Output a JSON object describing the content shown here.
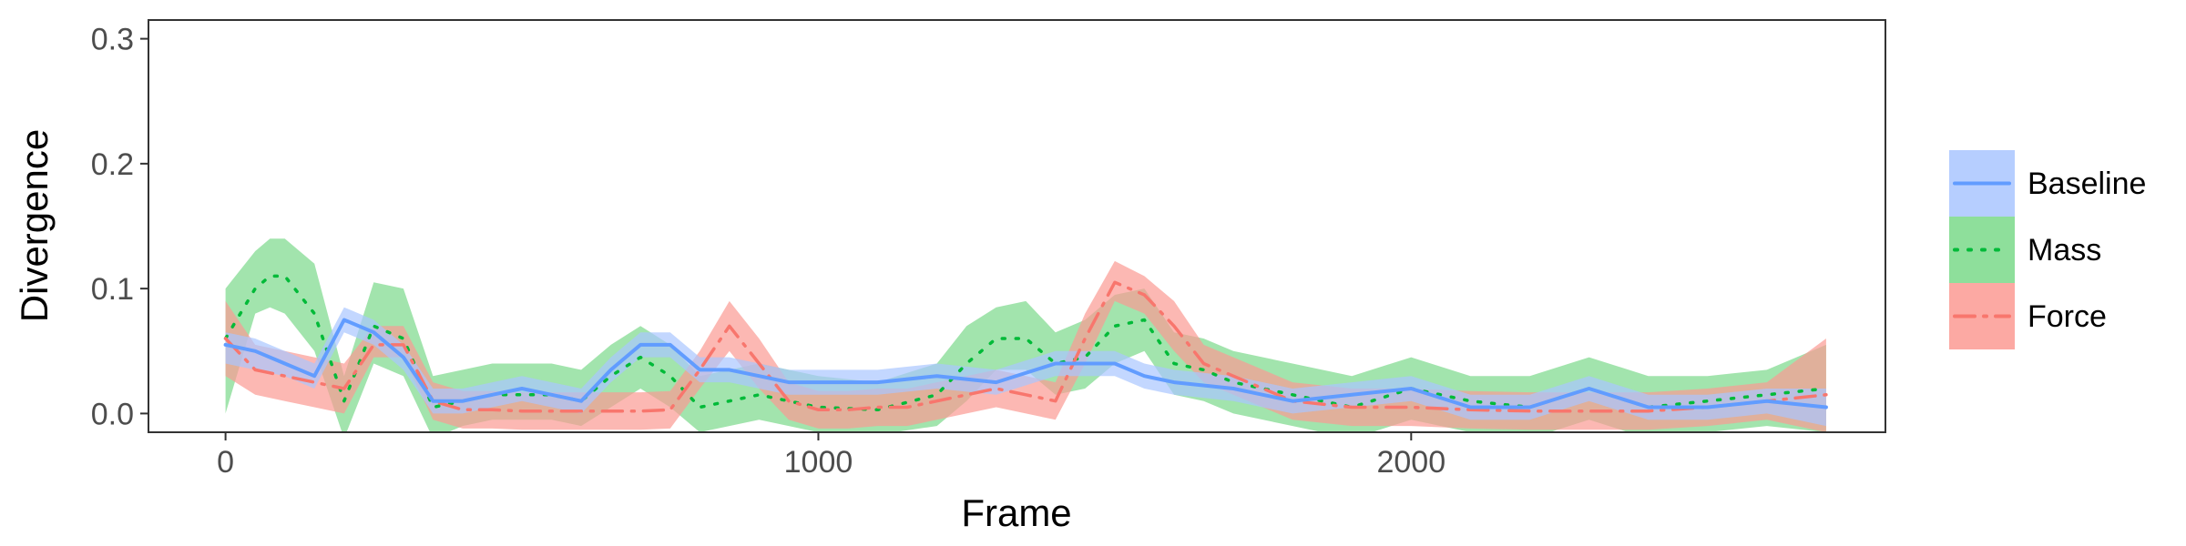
{
  "chart_data": {
    "type": "line",
    "xlabel": "Frame",
    "ylabel": "Divergence",
    "xlim": [
      -130,
      2800
    ],
    "ylim": [
      -0.015,
      0.315
    ],
    "x_ticks": [
      0,
      1000,
      2000
    ],
    "x_tick_labels": [
      "0",
      "1000",
      "2000"
    ],
    "y_ticks": [
      0.0,
      0.1,
      0.2,
      0.3
    ],
    "y_tick_labels": [
      "0.0",
      "0.1",
      "0.2",
      "0.3"
    ],
    "grid": false,
    "legend_position": "right",
    "series": [
      {
        "name": "Mass",
        "color": "#00ba38",
        "band_color": "#7ad98a",
        "line_style": "dotted",
        "x": [
          0,
          50,
          75,
          100,
          150,
          200,
          250,
          300,
          350,
          400,
          450,
          500,
          550,
          600,
          650,
          700,
          750,
          800,
          850,
          900,
          950,
          1000,
          1100,
          1200,
          1250,
          1300,
          1350,
          1400,
          1450,
          1500,
          1550,
          1600,
          1650,
          1700,
          1800,
          1900,
          2000,
          2100,
          2200,
          2300,
          2400,
          2500,
          2600,
          2700
        ],
        "y": [
          0.06,
          0.1,
          0.11,
          0.11,
          0.08,
          0.01,
          0.07,
          0.06,
          0.005,
          0.01,
          0.015,
          0.015,
          0.015,
          0.01,
          0.03,
          0.045,
          0.03,
          0.005,
          0.01,
          0.015,
          0.01,
          0.005,
          0.003,
          0.015,
          0.04,
          0.06,
          0.06,
          0.04,
          0.045,
          0.07,
          0.075,
          0.04,
          0.035,
          0.025,
          0.015,
          0.005,
          0.02,
          0.01,
          0.005,
          0.02,
          0.005,
          0.01,
          0.015,
          0.02
        ],
        "lower": [
          0.0,
          0.08,
          0.085,
          0.08,
          0.05,
          -0.02,
          0.04,
          0.03,
          -0.02,
          -0.01,
          -0.005,
          -0.005,
          -0.005,
          -0.01,
          0.005,
          0.02,
          0.005,
          -0.015,
          -0.01,
          -0.005,
          -0.01,
          -0.015,
          -0.017,
          -0.01,
          0.01,
          0.035,
          0.035,
          0.015,
          0.02,
          0.04,
          0.05,
          0.015,
          0.01,
          0.0,
          -0.01,
          -0.02,
          -0.005,
          -0.015,
          -0.02,
          -0.005,
          -0.02,
          -0.015,
          -0.01,
          -0.015
        ],
        "upper": [
          0.1,
          0.13,
          0.14,
          0.14,
          0.12,
          0.03,
          0.105,
          0.1,
          0.03,
          0.035,
          0.04,
          0.04,
          0.04,
          0.035,
          0.055,
          0.07,
          0.055,
          0.03,
          0.035,
          0.04,
          0.035,
          0.03,
          0.025,
          0.04,
          0.07,
          0.085,
          0.09,
          0.065,
          0.075,
          0.095,
          0.1,
          0.065,
          0.06,
          0.05,
          0.04,
          0.03,
          0.045,
          0.03,
          0.03,
          0.045,
          0.03,
          0.03,
          0.035,
          0.055
        ]
      },
      {
        "name": "Force",
        "color": "#f8766d",
        "band_color": "#fb9a93",
        "line_style": "dotdash",
        "x": [
          0,
          50,
          100,
          150,
          200,
          250,
          300,
          350,
          400,
          450,
          500,
          550,
          600,
          650,
          700,
          750,
          800,
          850,
          900,
          950,
          1000,
          1050,
          1100,
          1150,
          1200,
          1250,
          1300,
          1350,
          1400,
          1450,
          1500,
          1550,
          1600,
          1650,
          1700,
          1800,
          1900,
          2000,
          2100,
          2200,
          2300,
          2400,
          2500,
          2600,
          2700
        ],
        "y": [
          0.06,
          0.035,
          0.03,
          0.025,
          0.02,
          0.055,
          0.055,
          0.01,
          0.003,
          0.003,
          0.002,
          0.002,
          0.002,
          0.002,
          0.002,
          0.003,
          0.035,
          0.07,
          0.04,
          0.01,
          0.003,
          0.003,
          0.005,
          0.005,
          0.01,
          0.015,
          0.02,
          0.015,
          0.01,
          0.06,
          0.105,
          0.095,
          0.07,
          0.04,
          0.03,
          0.01,
          0.005,
          0.005,
          0.003,
          0.002,
          0.002,
          0.002,
          0.005,
          0.01,
          0.015
        ],
        "lower": [
          0.03,
          0.015,
          0.01,
          0.005,
          0.0,
          0.045,
          0.045,
          -0.005,
          -0.012,
          -0.012,
          -0.013,
          -0.013,
          -0.013,
          -0.013,
          -0.013,
          -0.012,
          0.02,
          0.05,
          0.02,
          -0.005,
          -0.012,
          -0.012,
          -0.01,
          -0.01,
          -0.005,
          0.0,
          0.005,
          0.0,
          -0.005,
          0.04,
          0.09,
          0.08,
          0.05,
          0.025,
          0.015,
          -0.005,
          -0.01,
          -0.01,
          -0.012,
          -0.013,
          -0.013,
          -0.013,
          -0.01,
          -0.005,
          -0.015
        ],
        "upper": [
          0.09,
          0.055,
          0.05,
          0.045,
          0.04,
          0.07,
          0.07,
          0.025,
          0.018,
          0.018,
          0.017,
          0.017,
          0.017,
          0.017,
          0.017,
          0.018,
          0.05,
          0.09,
          0.06,
          0.025,
          0.018,
          0.018,
          0.02,
          0.02,
          0.025,
          0.03,
          0.035,
          0.03,
          0.025,
          0.08,
          0.122,
          0.11,
          0.09,
          0.055,
          0.045,
          0.025,
          0.02,
          0.02,
          0.018,
          0.017,
          0.017,
          0.017,
          0.02,
          0.025,
          0.06
        ]
      },
      {
        "name": "Baseline",
        "color": "#619cff",
        "band_color": "#a9c6ff",
        "line_style": "solid",
        "x": [
          0,
          50,
          100,
          150,
          200,
          250,
          300,
          350,
          400,
          450,
          500,
          550,
          600,
          650,
          700,
          750,
          800,
          850,
          900,
          950,
          1000,
          1100,
          1200,
          1300,
          1400,
          1450,
          1500,
          1550,
          1600,
          1700,
          1800,
          1900,
          2000,
          2100,
          2200,
          2300,
          2400,
          2500,
          2600,
          2700
        ],
        "y": [
          0.055,
          0.05,
          0.04,
          0.03,
          0.075,
          0.065,
          0.045,
          0.01,
          0.01,
          0.015,
          0.02,
          0.015,
          0.01,
          0.035,
          0.055,
          0.055,
          0.035,
          0.035,
          0.03,
          0.025,
          0.025,
          0.025,
          0.03,
          0.025,
          0.04,
          0.04,
          0.04,
          0.03,
          0.025,
          0.02,
          0.01,
          0.015,
          0.02,
          0.005,
          0.005,
          0.02,
          0.005,
          0.005,
          0.01,
          0.005
        ],
        "lower": [
          0.04,
          0.035,
          0.03,
          0.02,
          0.065,
          0.055,
          0.035,
          0.0,
          0.0,
          0.005,
          0.01,
          0.005,
          0.0,
          0.025,
          0.045,
          0.045,
          0.025,
          0.025,
          0.02,
          0.015,
          0.015,
          0.015,
          0.02,
          0.015,
          0.03,
          0.03,
          0.03,
          0.02,
          0.015,
          0.01,
          0.0,
          0.005,
          0.01,
          -0.005,
          -0.005,
          0.01,
          -0.005,
          -0.005,
          0.0,
          -0.01
        ],
        "upper": [
          0.065,
          0.06,
          0.05,
          0.04,
          0.085,
          0.075,
          0.055,
          0.02,
          0.02,
          0.025,
          0.03,
          0.025,
          0.02,
          0.045,
          0.065,
          0.065,
          0.045,
          0.045,
          0.04,
          0.035,
          0.035,
          0.035,
          0.04,
          0.035,
          0.05,
          0.05,
          0.05,
          0.04,
          0.035,
          0.03,
          0.02,
          0.025,
          0.03,
          0.015,
          0.015,
          0.03,
          0.015,
          0.015,
          0.02,
          0.02
        ]
      }
    ],
    "legend_order": [
      "Baseline",
      "Mass",
      "Force"
    ]
  }
}
